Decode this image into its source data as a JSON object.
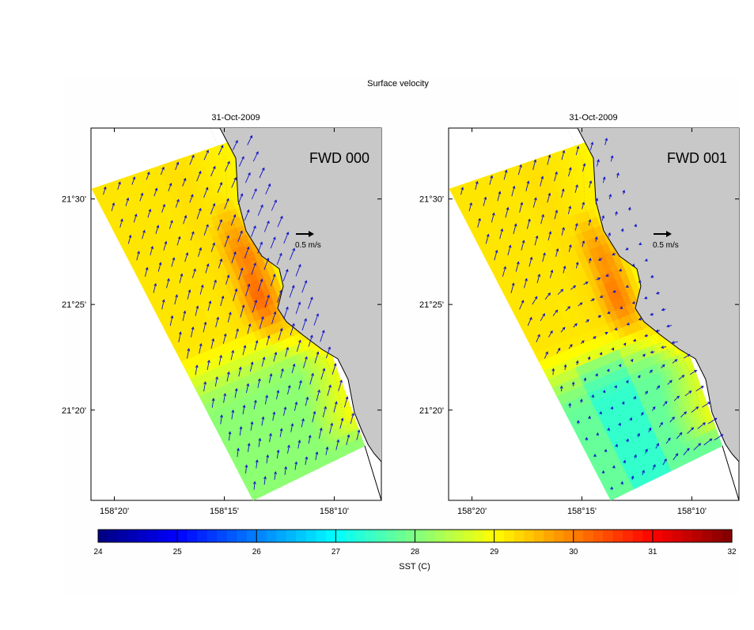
{
  "figure": {
    "suptitle": "Surface velocity"
  },
  "chart_data": [
    {
      "type": "heatmap",
      "panel": "left",
      "title": "31-Oct-2009",
      "annotation": "FWD 000",
      "scale_arrow_label": "0.5 m/s",
      "xlim_deg": [
        158.131,
        158.351
      ],
      "ylim_deg": [
        21.262,
        21.556
      ],
      "x_ticks": [
        {
          "value": 158.3333,
          "label": "158°20'"
        },
        {
          "value": 158.25,
          "label": "158°15'"
        },
        {
          "value": 158.1667,
          "label": "158°10'"
        }
      ],
      "y_ticks": [
        {
          "value": 21.5,
          "label": "21°30'"
        },
        {
          "value": 21.4167,
          "label": "21°25'"
        },
        {
          "value": 21.3333,
          "label": "21°20'"
        }
      ],
      "sst_regions": [
        {
          "region": "offshore edge",
          "sst_c": 29.0
        },
        {
          "region": "core near coast",
          "sst_c": 31.0
        },
        {
          "region": "southern domain",
          "sst_c": 28.0
        }
      ]
    },
    {
      "type": "heatmap",
      "panel": "right",
      "title": "31-Oct-2009",
      "annotation": "FWD 001",
      "scale_arrow_label": "0.5 m/s",
      "xlim_deg": [
        158.131,
        158.351
      ],
      "ylim_deg": [
        21.262,
        21.556
      ],
      "x_ticks": [
        {
          "value": 158.3333,
          "label": "158°20'"
        },
        {
          "value": 158.25,
          "label": "158°15'"
        },
        {
          "value": 158.1667,
          "label": "158°10'"
        }
      ],
      "y_ticks": [
        {
          "value": 21.5,
          "label": "21°30'"
        },
        {
          "value": 21.4167,
          "label": "21°25'"
        },
        {
          "value": 21.3333,
          "label": "21°20'"
        }
      ],
      "sst_regions": [
        {
          "region": "offshore edge",
          "sst_c": 29.0
        },
        {
          "region": "core near coast",
          "sst_c": 30.8
        },
        {
          "region": "southern domain",
          "sst_c": 27.8
        }
      ]
    }
  ],
  "colorbar": {
    "label": "SST (C)",
    "min": 24,
    "max": 32,
    "ticks": [
      "24",
      "25",
      "26",
      "27",
      "28",
      "29",
      "30",
      "31",
      "32"
    ]
  },
  "colors": {
    "land": "#c8c8c8",
    "arrows": "#1010c8",
    "scale_arrow": "#000000"
  }
}
